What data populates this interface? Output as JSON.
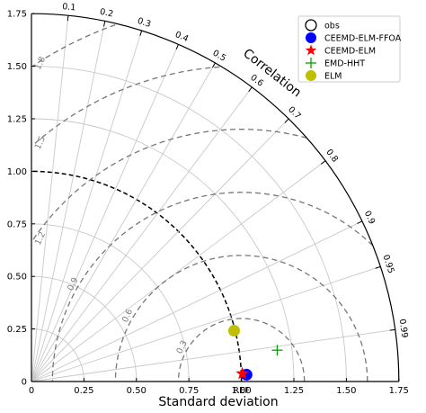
{
  "chart_data": {
    "type": "scatter",
    "subtype": "taylor-diagram",
    "xlabel": "Standard deviation",
    "corr_label": "Correlation",
    "ref_label": "REF",
    "std_ticks": [
      "0",
      "0.25",
      "0.50",
      "0.75",
      "1.00",
      "1.25",
      "1.50",
      "1.75"
    ],
    "std_tick_values": [
      0,
      0.25,
      0.5,
      0.75,
      1.0,
      1.25,
      1.5,
      1.75
    ],
    "y_ticks": [
      "0",
      "0.25",
      "0.50",
      "0.75",
      "1.00",
      "1.25",
      "1.50",
      "1.75"
    ],
    "std_range": [
      0,
      1.75
    ],
    "ref_std": 1.0,
    "corr_ticks": [
      "0.1",
      "0.2",
      "0.3",
      "0.4",
      "0.5",
      "0.6",
      "0.7",
      "0.8",
      "0.9",
      "0.95",
      "0.99"
    ],
    "corr_values": [
      0.1,
      0.2,
      0.3,
      0.4,
      0.5,
      0.6,
      0.7,
      0.8,
      0.9,
      0.95,
      0.99
    ],
    "rms_contours": [
      {
        "value": 0.3,
        "label": "0.3"
      },
      {
        "value": 0.6,
        "label": "0.6"
      },
      {
        "value": 0.9,
        "label": "0.9"
      },
      {
        "value": 1.2,
        "label": "1.2"
      },
      {
        "value": 1.5,
        "label": "1.5"
      },
      {
        "value": 1.8,
        "label": "1.8"
      }
    ],
    "grid": true,
    "legend_position": "top-right",
    "series": [
      {
        "name": "obs",
        "marker": "open-circle",
        "color": "#000000",
        "std": 1.0,
        "corr": 1.0,
        "legend_only": true
      },
      {
        "name": "CEEMD-ELM-FFOA",
        "marker": "circle",
        "color": "#0000ff",
        "std": 1.025,
        "corr": 0.9995
      },
      {
        "name": "CEEMD-ELM",
        "marker": "star",
        "color": "#ff0000",
        "std": 1.005,
        "corr": 0.9993
      },
      {
        "name": "EMD-HHT",
        "marker": "plus",
        "color": "#00a000",
        "std": 1.18,
        "corr": 0.992
      },
      {
        "name": "ELM",
        "marker": "circle",
        "color": "#bfbf00",
        "std": 0.995,
        "corr": 0.97
      }
    ]
  }
}
